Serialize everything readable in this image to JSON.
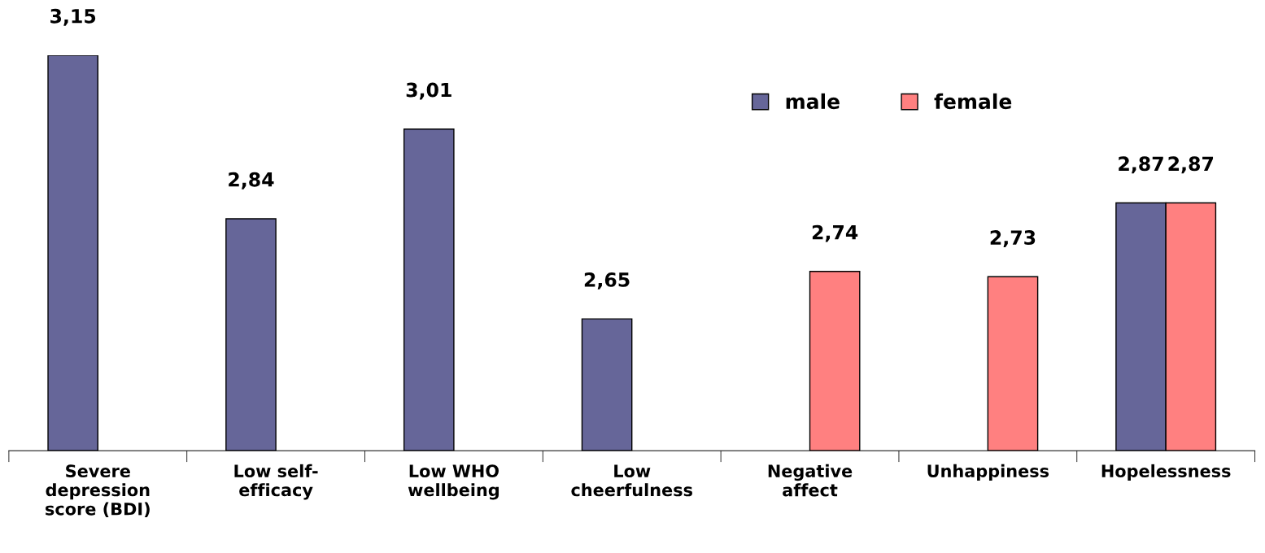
{
  "chart_data": {
    "type": "bar",
    "categories": [
      "Severe\ndepression\nscore (BDI)",
      "Low self-\nefficacy",
      "Low WHO\nwellbeing",
      "Low\ncheerfulness",
      "Negative\naffect",
      "Unhappiness",
      "Hopelessness"
    ],
    "series": [
      {
        "name": "male",
        "color": "#666699",
        "values": [
          3.15,
          2.84,
          3.01,
          2.65,
          null,
          null,
          2.87
        ],
        "value_labels": [
          "3,15",
          "2,84",
          "3,01",
          "2,65",
          null,
          null,
          "2,87"
        ]
      },
      {
        "name": "female",
        "color": "#ff8080",
        "values": [
          null,
          null,
          null,
          null,
          2.74,
          2.73,
          2.87
        ],
        "value_labels": [
          null,
          null,
          null,
          null,
          "2,74",
          "2,73",
          "2,87"
        ]
      }
    ],
    "ylim": [
      2.4,
      3.15
    ],
    "tick_labels": "x",
    "legend": "top right"
  }
}
